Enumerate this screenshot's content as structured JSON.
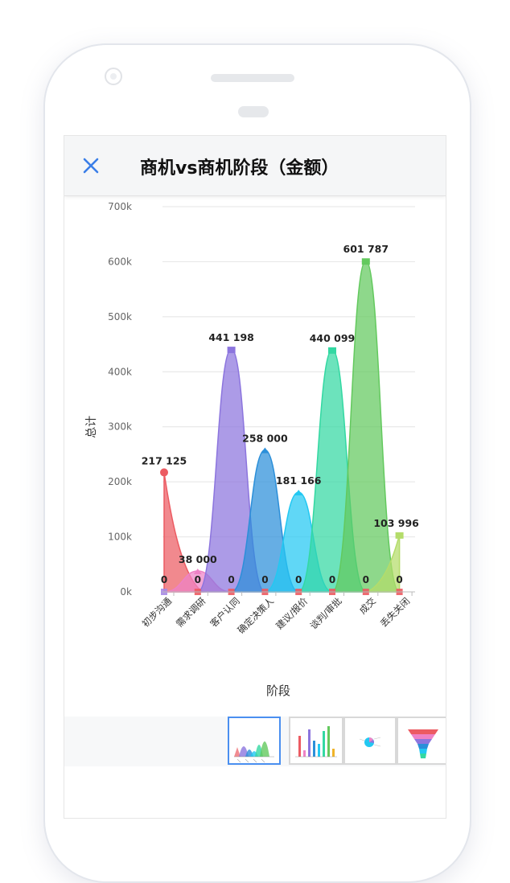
{
  "header": {
    "title": "商机vs商机阶段（金额）"
  },
  "colors": {
    "accent": "#3a7ee8",
    "series": [
      "#ec5b62",
      "#ee82c6",
      "#8c75de",
      "#2b8fd9",
      "#22c8f2",
      "#33d8a2",
      "#63c95e",
      "#b4dc6a"
    ]
  },
  "chart_data": {
    "type": "area",
    "categories": [
      "初步沟通",
      "需求调研",
      "客户认同",
      "确定决策人",
      "建议/报价",
      "谈判/审批",
      "成交",
      "丢失关闭"
    ],
    "series": [
      {
        "values": [
          217125,
          0,
          0,
          0,
          0,
          0,
          0,
          0
        ]
      },
      {
        "values": [
          0,
          38000,
          0,
          0,
          0,
          0,
          0,
          0
        ]
      },
      {
        "values": [
          0,
          0,
          441198,
          0,
          0,
          0,
          0,
          0
        ]
      },
      {
        "values": [
          0,
          0,
          0,
          258000,
          0,
          0,
          0,
          0
        ]
      },
      {
        "values": [
          0,
          0,
          0,
          0,
          181166,
          0,
          0,
          0
        ]
      },
      {
        "values": [
          0,
          0,
          0,
          0,
          0,
          440099,
          0,
          0
        ]
      },
      {
        "values": [
          0,
          0,
          0,
          0,
          0,
          0,
          601787,
          0
        ]
      },
      {
        "values": [
          0,
          0,
          0,
          0,
          0,
          0,
          0,
          103996
        ]
      }
    ],
    "data_labels": [
      "217 125",
      "38 000",
      "441 198",
      "258 000",
      "181 166",
      "440 099",
      "601 787",
      "103 996"
    ],
    "zero_label": "0",
    "xlabel": "阶段",
    "ylabel": "总计",
    "yticks": [
      "0k",
      "100k",
      "200k",
      "300k",
      "400k",
      "500k",
      "600k",
      "700k"
    ],
    "ylim": [
      0,
      700000
    ],
    "grid": true
  },
  "thumbnails": [
    {
      "name": "area-chart",
      "active": true
    },
    {
      "name": "bar-chart",
      "active": false
    },
    {
      "name": "pie-chart",
      "active": false
    },
    {
      "name": "funnel-chart",
      "active": false
    }
  ]
}
